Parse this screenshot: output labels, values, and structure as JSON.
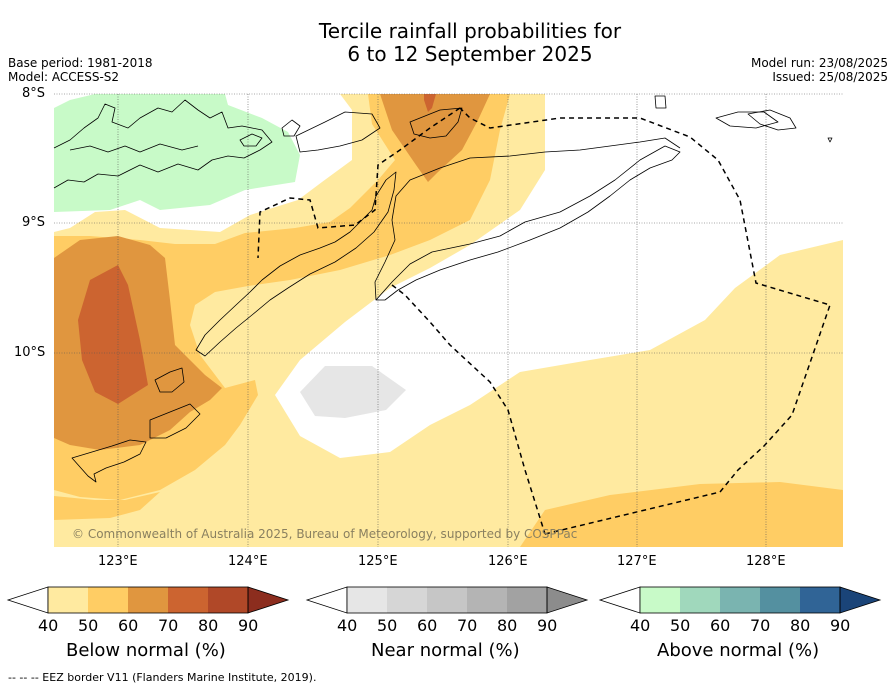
{
  "title_line1": "Tercile rainfall probabilities for",
  "title_line2": "6 to 12 September 2025",
  "base_period": "Base period: 1981-2018",
  "model": "Model: ACCESS-S2",
  "model_run": "Model run: 23/08/2025",
  "issued": "Issued: 25/08/2025",
  "lat_labels": [
    "8°S",
    "9°S",
    "10°S"
  ],
  "lon_labels": [
    "123°E",
    "124°E",
    "125°E",
    "126°E",
    "127°E",
    "128°E"
  ],
  "copyright": "© Commonwealth of Australia 2025, Bureau of Meteorology, supported by COSPPac",
  "colorbars": [
    {
      "title": "Below normal (%)",
      "ticks": [
        "40",
        "50",
        "60",
        "70",
        "80",
        "90"
      ],
      "colors": [
        "#ffffff",
        "#ffeaa0",
        "#ffcd64",
        "#e0963f",
        "#cc6430",
        "#b04828",
        "#8c2d1e"
      ]
    },
    {
      "title": "Near normal (%)",
      "ticks": [
        "40",
        "50",
        "60",
        "70",
        "80",
        "90"
      ],
      "colors": [
        "#ffffff",
        "#e6e6e6",
        "#d6d6d6",
        "#c6c6c6",
        "#b4b4b4",
        "#a2a2a2",
        "#8c8c8c"
      ]
    },
    {
      "title": "Above normal (%)",
      "ticks": [
        "40",
        "50",
        "60",
        "70",
        "80",
        "90"
      ],
      "colors": [
        "#ffffff",
        "#c8fac8",
        "#a0d8bc",
        "#7ab4b0",
        "#5490a0",
        "#306496",
        "#1a4478"
      ]
    }
  ],
  "footer": "--  --  -- EEZ border V11 (Flanders Marine Institute, 2019)."
}
